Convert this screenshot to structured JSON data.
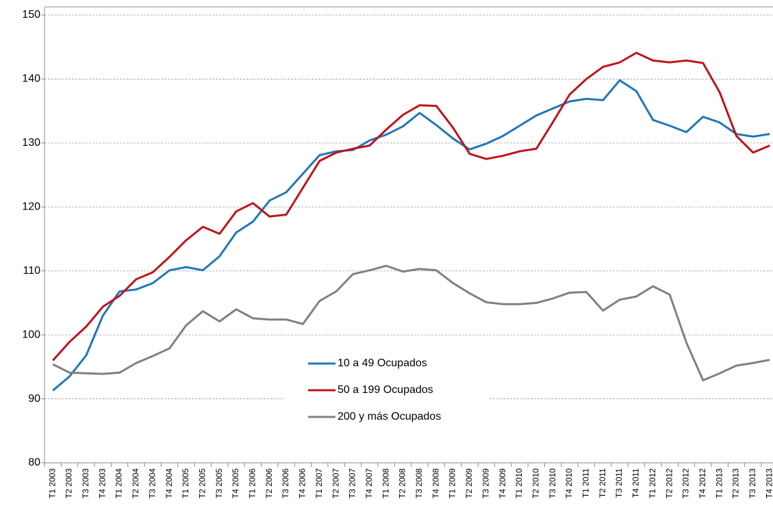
{
  "chart_data": {
    "type": "line",
    "categories": [
      "T1 2003",
      "T2 2003",
      "T3 2003",
      "T4 2003",
      "T1 2004",
      "T2 2004",
      "T3 2004",
      "T4 2004",
      "T1 2005",
      "T2 2005",
      "T3 2005",
      "T4 2005",
      "T1 2006",
      "T2 2006",
      "T3 2006",
      "T4 2006",
      "T1 2007",
      "T2 2007",
      "T3 2007",
      "T4 2007",
      "T1 2008",
      "T2 2008",
      "T3 2008",
      "T4 2008",
      "T1 2009",
      "T2 2009",
      "T3 2009",
      "T4 2009",
      "T1 2010",
      "T2 2010",
      "T3 2010",
      "T4 2010",
      "T1 2011",
      "T2 2011",
      "T3 2011",
      "T4 2011",
      "T1 2012",
      "T2 2012",
      "T3 2012",
      "T4 2012",
      "T1 2013",
      "T2 2013",
      "T3 2013",
      "T4 2013"
    ],
    "series": [
      {
        "name": "10 a 49 Ocupados",
        "color": "#1f77b8",
        "values": [
          91.3,
          93.5,
          96.8,
          103,
          106.8,
          107.1,
          108.1,
          110.1,
          110.6,
          110.1,
          112.3,
          116,
          117.7,
          121,
          122.3,
          125.2,
          128.1,
          128.7,
          128.9,
          130.4,
          131.3,
          132.6,
          134.7,
          132.8,
          130.7,
          129,
          129.9,
          131.1,
          132.7,
          134.3,
          135.4,
          136.5,
          136.9,
          136.7,
          139.8,
          138.1,
          133.6,
          132.7,
          131.7,
          134.1,
          133.2,
          131.4,
          131,
          131.4
        ]
      },
      {
        "name": "50 a 199 Ocupados",
        "color": "#c0121b",
        "values": [
          96,
          98.9,
          101.3,
          104.4,
          106.1,
          108.7,
          109.8,
          112.2,
          114.8,
          116.9,
          115.8,
          119.3,
          120.6,
          118.5,
          118.8,
          123,
          127.2,
          128.5,
          129.1,
          129.6,
          132.1,
          134.4,
          135.9,
          135.8,
          132.4,
          128.3,
          127.5,
          128,
          128.7,
          129.1,
          133.3,
          137.6,
          140,
          141.9,
          142.6,
          144.1,
          142.9,
          142.6,
          142.9,
          142.5,
          137.9,
          131.1,
          128.5,
          129.6
        ]
      },
      {
        "name": "200 y más Ocupados",
        "color": "#808080",
        "values": [
          95.4,
          94.1,
          94,
          93.9,
          94.1,
          95.6,
          96.7,
          97.9,
          101.5,
          103.7,
          102.1,
          104,
          102.6,
          102.4,
          102.4,
          101.7,
          105.3,
          106.8,
          109.5,
          110.1,
          110.8,
          109.9,
          110.3,
          110.1,
          108.1,
          106.5,
          105.1,
          104.8,
          104.8,
          105,
          105.7,
          106.6,
          106.7,
          103.8,
          105.5,
          106,
          107.6,
          106.3,
          98.8,
          92.9,
          94,
          95.2,
          95.6,
          96.1
        ]
      }
    ],
    "ylim": [
      80,
      150
    ],
    "yticks": [
      80,
      90,
      100,
      110,
      120,
      130,
      140,
      150
    ],
    "grid": true
  }
}
